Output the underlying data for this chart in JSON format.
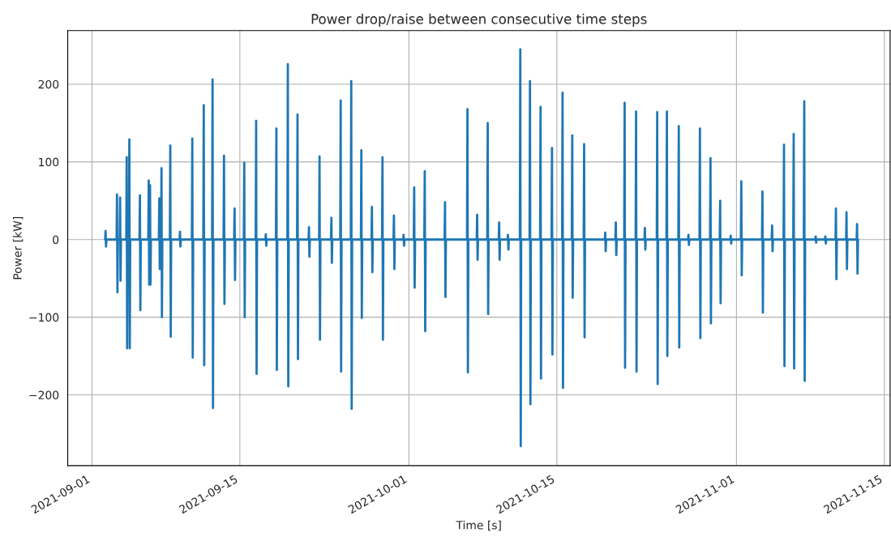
{
  "chart_data": {
    "type": "line",
    "title": "Power drop/raise between consecutive time steps",
    "xlabel": "Time [s]",
    "ylabel": "Power [kW]",
    "x": [
      "2021-09-02T06:00",
      "2021-09-02T07:00",
      "2021-09-02T08:00",
      "2021-09-02T09:00",
      "2021-09-03T08:00",
      "2021-09-03T09:00",
      "2021-09-03T10:00",
      "2021-09-03T11:00",
      "2021-09-03T15:00",
      "2021-09-03T16:00",
      "2021-09-03T17:00",
      "2021-09-03T18:00",
      "2021-09-04T06:00",
      "2021-09-04T07:00",
      "2021-09-04T08:00",
      "2021-09-04T09:00",
      "2021-09-04T12:00",
      "2021-09-04T13:00",
      "2021-09-04T14:00",
      "2021-09-04T15:00",
      "2021-09-05T12:00",
      "2021-09-05T13:00",
      "2021-09-05T14:00",
      "2021-09-05T15:00",
      "2021-09-06T08:00",
      "2021-09-06T09:00",
      "2021-09-06T10:00",
      "2021-09-06T11:00",
      "2021-09-06T11:30",
      "2021-09-06T12:00",
      "2021-09-06T13:00",
      "2021-09-06T14:00",
      "2021-09-07T08:00",
      "2021-09-07T09:00",
      "2021-09-07T10:00",
      "2021-09-07T11:00",
      "2021-09-07T13:00",
      "2021-09-07T14:00",
      "2021-09-07T15:00",
      "2021-09-07T16:00",
      "2021-09-08T09:00",
      "2021-09-08T10:00",
      "2021-09-08T11:00",
      "2021-09-08T12:00",
      "2021-09-09T07:00",
      "2021-09-09T08:00",
      "2021-09-09T09:00",
      "2021-09-09T10:00",
      "2021-09-10T11:00",
      "2021-09-10T12:00",
      "2021-09-10T13:00",
      "2021-09-10T14:00",
      "2021-09-11T13:00",
      "2021-09-11T14:00",
      "2021-09-11T15:00",
      "2021-09-11T16:00",
      "2021-09-12T09:00",
      "2021-09-12T10:00",
      "2021-09-12T11:00",
      "2021-09-12T12:00",
      "2021-09-13T11:00",
      "2021-09-13T12:00",
      "2021-09-13T13:00",
      "2021-09-13T14:00",
      "2021-09-14T11:00",
      "2021-09-14T12:00",
      "2021-09-14T13:00",
      "2021-09-14T14:00",
      "2021-09-15T09:00",
      "2021-09-15T10:00",
      "2021-09-15T11:00",
      "2021-09-15T12:00",
      "2021-09-16T12:00",
      "2021-09-16T13:00",
      "2021-09-16T14:00",
      "2021-09-16T15:00",
      "2021-09-17T10:00",
      "2021-09-17T11:00",
      "2021-09-17T12:00",
      "2021-09-17T13:00",
      "2021-09-18T10:00",
      "2021-09-18T11:00",
      "2021-09-18T12:00",
      "2021-09-18T13:00",
      "2021-09-19T12:00",
      "2021-09-19T13:00",
      "2021-09-19T14:00",
      "2021-09-19T15:00",
      "2021-09-20T10:00",
      "2021-09-20T11:00",
      "2021-09-20T12:00",
      "2021-09-20T13:00",
      "2021-09-21T12:00",
      "2021-09-21T13:00",
      "2021-09-21T14:00",
      "2021-09-21T15:00",
      "2021-09-22T12:00",
      "2021-09-22T13:00",
      "2021-09-22T14:00",
      "2021-09-22T15:00",
      "2021-09-23T15:00",
      "2021-09-23T16:00",
      "2021-09-23T17:00",
      "2021-09-23T18:00",
      "2021-09-24T12:00",
      "2021-09-24T13:00",
      "2021-09-24T14:00",
      "2021-09-24T15:00",
      "2021-09-25T12:00",
      "2021-09-25T13:00",
      "2021-09-25T14:00",
      "2021-09-25T15:00",
      "2021-09-26T11:00",
      "2021-09-26T12:00",
      "2021-09-26T13:00",
      "2021-09-26T14:00",
      "2021-09-27T11:00",
      "2021-09-27T12:00",
      "2021-09-27T13:00",
      "2021-09-27T14:00",
      "2021-09-28T11:00",
      "2021-09-28T12:00",
      "2021-09-28T13:00",
      "2021-09-28T14:00",
      "2021-09-29T13:00",
      "2021-09-29T14:00",
      "2021-09-29T15:00",
      "2021-09-29T16:00",
      "2021-09-30T11:00",
      "2021-09-30T12:00",
      "2021-09-30T13:00",
      "2021-09-30T14:00",
      "2021-10-01T11:00",
      "2021-10-01T12:00",
      "2021-10-01T13:00",
      "2021-10-01T14:00",
      "2021-10-02T11:00",
      "2021-10-02T12:00",
      "2021-10-02T13:00",
      "2021-10-02T14:00",
      "2021-10-04T09:00",
      "2021-10-04T10:00",
      "2021-10-04T11:00",
      "2021-10-04T12:00",
      "2021-10-06T12:00",
      "2021-10-06T13:00",
      "2021-10-06T14:00",
      "2021-10-06T15:00",
      "2021-10-07T10:00",
      "2021-10-07T11:00",
      "2021-10-07T12:00",
      "2021-10-07T13:00",
      "2021-10-08T10:00",
      "2021-10-08T11:00",
      "2021-10-08T12:00",
      "2021-10-08T13:00",
      "2021-10-09T12:00",
      "2021-10-09T13:00",
      "2021-10-09T14:00",
      "2021-10-09T15:00",
      "2021-10-10T08:00",
      "2021-10-10T09:00",
      "2021-10-10T10:00",
      "2021-10-10T11:00",
      "2021-10-11T12:00",
      "2021-10-11T13:00",
      "2021-10-11T14:00",
      "2021-10-11T15:00",
      "2021-10-12T10:00",
      "2021-10-12T11:00",
      "2021-10-12T12:00",
      "2021-10-12T13:00",
      "2021-10-13T10:00",
      "2021-10-13T11:00",
      "2021-10-13T12:00",
      "2021-10-13T13:00",
      "2021-10-14T12:00",
      "2021-10-14T13:00",
      "2021-10-14T14:00",
      "2021-10-14T15:00",
      "2021-10-15T12:00",
      "2021-10-15T13:00",
      "2021-10-15T14:00",
      "2021-10-15T15:00",
      "2021-10-16T10:00",
      "2021-10-16T11:00",
      "2021-10-16T12:00",
      "2021-10-16T13:00",
      "2021-10-17T13:00",
      "2021-10-17T14:00",
      "2021-10-17T15:00",
      "2021-10-17T16:00",
      "2021-10-19T13:00",
      "2021-10-19T14:00",
      "2021-10-19T15:00",
      "2021-10-19T16:00",
      "2021-10-20T13:00",
      "2021-10-20T14:00",
      "2021-10-20T15:00",
      "2021-10-20T16:00",
      "2021-10-21T09:00",
      "2021-10-21T10:00",
      "2021-10-21T11:00",
      "2021-10-21T12:00",
      "2021-10-22T11:00",
      "2021-10-22T12:00",
      "2021-10-22T13:00",
      "2021-10-22T14:00",
      "2021-10-23T07:00",
      "2021-10-23T08:00",
      "2021-10-23T09:00",
      "2021-10-23T10:00",
      "2021-10-24T11:00",
      "2021-10-24T12:00",
      "2021-10-24T13:00",
      "2021-10-24T14:00",
      "2021-10-25T09:00",
      "2021-10-25T10:00",
      "2021-10-25T11:00",
      "2021-10-25T12:00",
      "2021-10-26T12:00",
      "2021-10-26T13:00",
      "2021-10-26T14:00",
      "2021-10-26T15:00",
      "2021-10-27T10:00",
      "2021-10-27T11:00",
      "2021-10-27T12:00",
      "2021-10-27T13:00",
      "2021-10-28T12:00",
      "2021-10-28T13:00",
      "2021-10-28T14:00",
      "2021-10-28T15:00",
      "2021-10-29T12:00",
      "2021-10-29T13:00",
      "2021-10-29T14:00",
      "2021-10-29T15:00",
      "2021-10-30T10:00",
      "2021-10-30T11:00",
      "2021-10-30T12:00",
      "2021-10-30T13:00",
      "2021-10-31T10:00",
      "2021-10-31T11:00",
      "2021-10-31T12:00",
      "2021-10-31T13:00",
      "2021-11-01T10:00",
      "2021-11-01T11:00",
      "2021-11-01T12:00",
      "2021-11-01T13:00",
      "2021-11-03T10:00",
      "2021-11-03T11:00",
      "2021-11-03T12:00",
      "2021-11-03T13:00",
      "2021-11-04T08:00",
      "2021-11-04T09:00",
      "2021-11-04T10:00",
      "2021-11-04T11:00",
      "2021-11-05T11:00",
      "2021-11-05T12:00",
      "2021-11-05T13:00",
      "2021-11-05T14:00",
      "2021-11-06T09:00",
      "2021-11-06T10:00",
      "2021-11-06T11:00",
      "2021-11-06T12:00",
      "2021-11-07T09:00",
      "2021-11-07T10:00",
      "2021-11-07T11:00",
      "2021-11-07T12:00",
      "2021-11-08T11:00",
      "2021-11-08T12:00",
      "2021-11-08T13:00",
      "2021-11-08T14:00",
      "2021-11-09T09:00",
      "2021-11-09T10:00",
      "2021-11-09T11:00",
      "2021-11-09T12:00",
      "2021-11-10T09:00",
      "2021-11-10T10:00",
      "2021-11-10T11:00",
      "2021-11-10T12:00",
      "2021-11-11T09:00",
      "2021-11-11T10:00",
      "2021-11-11T11:00",
      "2021-11-11T12:00",
      "2021-11-12T09:00",
      "2021-11-12T10:00",
      "2021-11-12T11:00",
      "2021-11-12T12:00"
    ],
    "values": [
      0,
      11,
      -9,
      0,
      0,
      58,
      -68,
      0,
      0,
      54,
      -53,
      0,
      0,
      106,
      -140,
      0,
      0,
      129,
      -140,
      0,
      0,
      57,
      -91,
      0,
      0,
      76,
      -58,
      0,
      0,
      70,
      -58,
      0,
      0,
      53,
      -38,
      0,
      0,
      92,
      -100,
      0,
      0,
      121,
      -125,
      0,
      0,
      10,
      -9,
      0,
      0,
      130,
      -152,
      0,
      0,
      173,
      -162,
      0,
      0,
      206,
      -217,
      0,
      0,
      108,
      -83,
      0,
      0,
      40,
      -52,
      0,
      0,
      99,
      -100,
      0,
      0,
      153,
      -173,
      0,
      0,
      7,
      -8,
      0,
      0,
      143,
      -168,
      0,
      0,
      226,
      -189,
      0,
      0,
      161,
      -154,
      0,
      0,
      16,
      -22,
      0,
      0,
      107,
      -129,
      0,
      0,
      28,
      -30,
      0,
      0,
      179,
      -170,
      0,
      0,
      204,
      -218,
      0,
      0,
      115,
      -101,
      0,
      0,
      42,
      -42,
      0,
      0,
      106,
      -129,
      0,
      0,
      31,
      -38,
      0,
      0,
      6,
      -8,
      0,
      0,
      67,
      -62,
      0,
      0,
      88,
      -118,
      0,
      0,
      48,
      -74,
      0,
      0,
      168,
      -171,
      0,
      0,
      32,
      -26,
      0,
      0,
      150,
      -96,
      0,
      0,
      22,
      -26,
      0,
      0,
      6,
      -13,
      0,
      0,
      245,
      -266,
      0,
      0,
      204,
      -212,
      0,
      0,
      171,
      -179,
      0,
      0,
      118,
      -148,
      0,
      0,
      189,
      -191,
      0,
      0,
      134,
      -75,
      0,
      0,
      123,
      -126,
      0,
      0,
      9,
      -15,
      0,
      0,
      22,
      -20,
      0,
      0,
      176,
      -165,
      0,
      0,
      165,
      -170,
      0,
      0,
      15,
      -13,
      0,
      0,
      164,
      -186,
      0,
      0,
      165,
      -150,
      0,
      0,
      146,
      -139,
      0,
      0,
      6,
      -7,
      0,
      0,
      143,
      -127,
      0,
      0,
      105,
      -108,
      0,
      0,
      50,
      -82,
      0,
      0,
      5,
      -5,
      0,
      0,
      75,
      -46,
      0,
      0,
      62,
      -94,
      0,
      0,
      18,
      -15,
      0,
      0,
      122,
      -163,
      0,
      0,
      136,
      -166,
      0,
      0,
      178,
      -182,
      0,
      0,
      4,
      -4,
      0,
      0,
      4,
      -5,
      0,
      0,
      40,
      -51,
      0,
      0,
      35,
      -38,
      0,
      0,
      20,
      -44,
      0
    ],
    "color": "#1f77b4",
    "xlim": [
      "2021-08-29T17:00",
      "2021-11-15T13:00"
    ],
    "xticks": [
      "2021-09-01",
      "2021-09-15",
      "2021-10-01",
      "2021-10-15",
      "2021-11-01",
      "2021-11-15"
    ],
    "ylim": [
      -291,
      269
    ],
    "yticks": [
      {
        "value": -200,
        "label": "−200"
      },
      {
        "value": -100,
        "label": "−100"
      },
      0,
      100,
      200
    ],
    "grid": true,
    "legend": false
  }
}
